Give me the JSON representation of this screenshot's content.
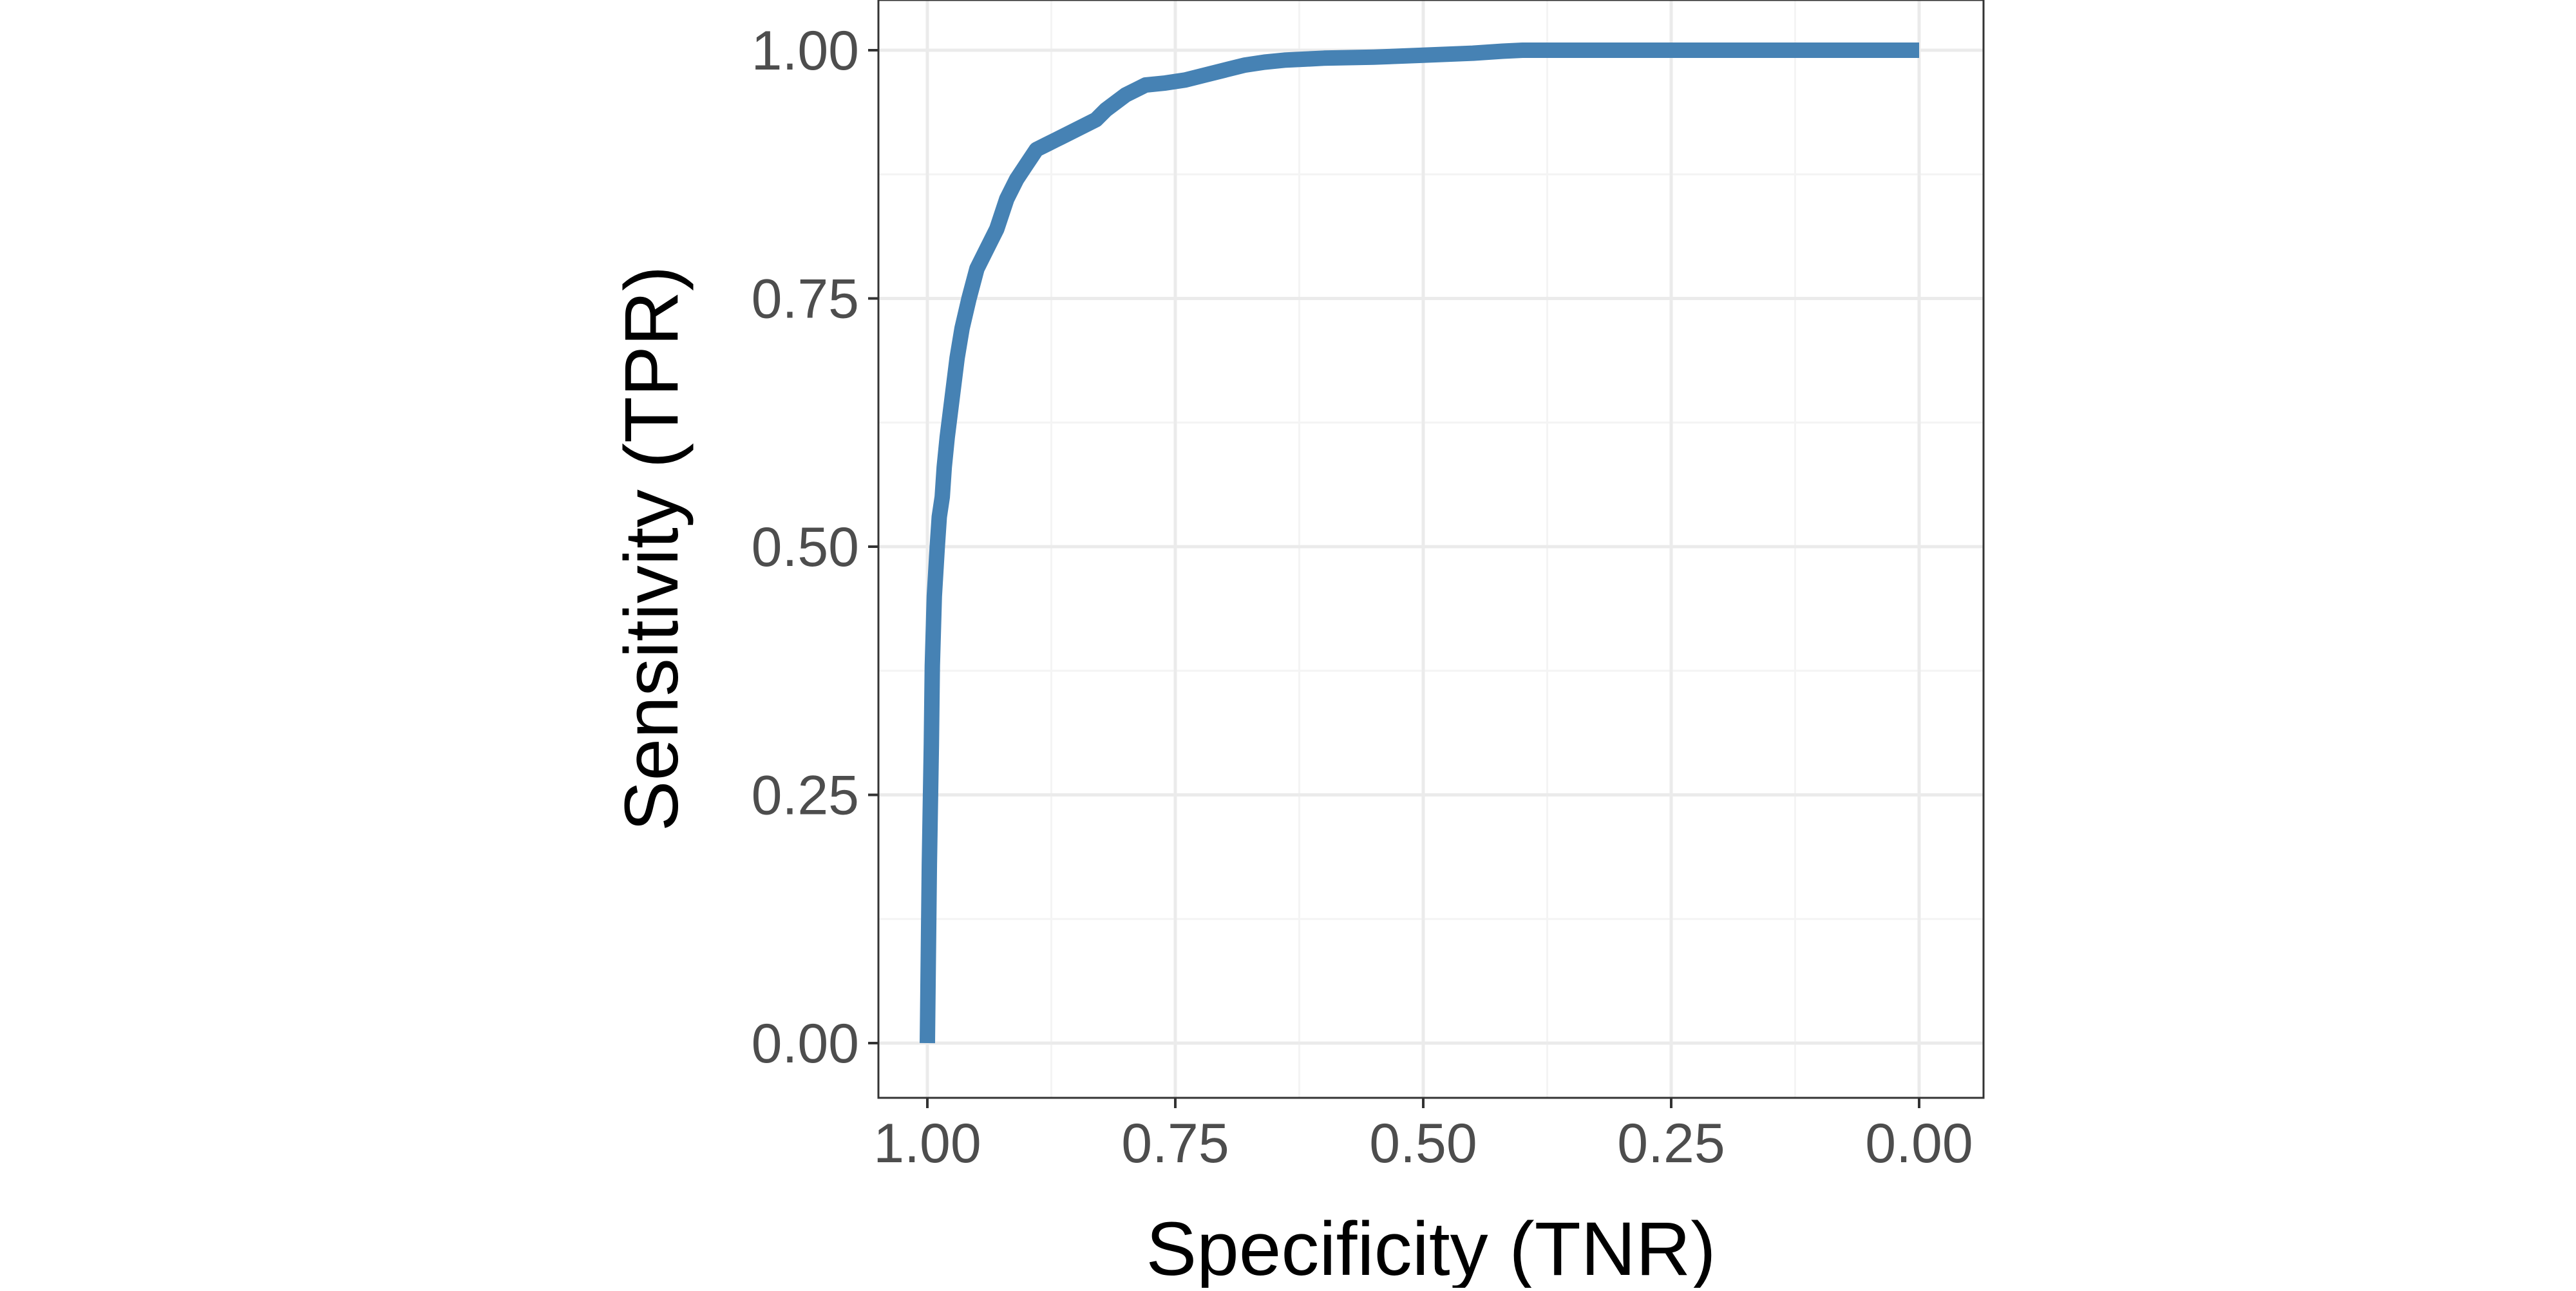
{
  "chart_data": {
    "type": "line",
    "title": "",
    "xlabel": "Specificity (TNR)",
    "ylabel": "Sensitivity (TPR)",
    "x_reversed": true,
    "xlim": [
      1.0,
      0.0
    ],
    "ylim": [
      0.0,
      1.0
    ],
    "x_ticks": [
      "1.00",
      "0.75",
      "0.50",
      "0.25",
      "0.00"
    ],
    "y_ticks": [
      "0.00",
      "0.25",
      "0.50",
      "0.75",
      "1.00"
    ],
    "grid": true,
    "line_color": "#4682B4",
    "series": [
      {
        "x": [
          1.0,
          0.998,
          0.996,
          0.995,
          0.993,
          0.99,
          0.988,
          0.985,
          0.983,
          0.98,
          0.975,
          0.97,
          0.965,
          0.958,
          0.95,
          0.94,
          0.93,
          0.92,
          0.91,
          0.9,
          0.89,
          0.88,
          0.87,
          0.86,
          0.85,
          0.83,
          0.82,
          0.8,
          0.78,
          0.76,
          0.74,
          0.72,
          0.7,
          0.68,
          0.66,
          0.64,
          0.62,
          0.6,
          0.55,
          0.5,
          0.45,
          0.42,
          0.4,
          0.3,
          0.2,
          0.1,
          0.0
        ],
        "y": [
          0.0,
          0.18,
          0.3,
          0.38,
          0.45,
          0.5,
          0.53,
          0.55,
          0.58,
          0.61,
          0.65,
          0.69,
          0.72,
          0.75,
          0.78,
          0.8,
          0.82,
          0.85,
          0.87,
          0.885,
          0.9,
          0.905,
          0.91,
          0.915,
          0.92,
          0.93,
          0.94,
          0.955,
          0.965,
          0.967,
          0.97,
          0.975,
          0.98,
          0.985,
          0.988,
          0.99,
          0.991,
          0.992,
          0.993,
          0.995,
          0.997,
          0.999,
          1.0,
          1.0,
          1.0,
          1.0,
          1.0
        ]
      }
    ]
  }
}
